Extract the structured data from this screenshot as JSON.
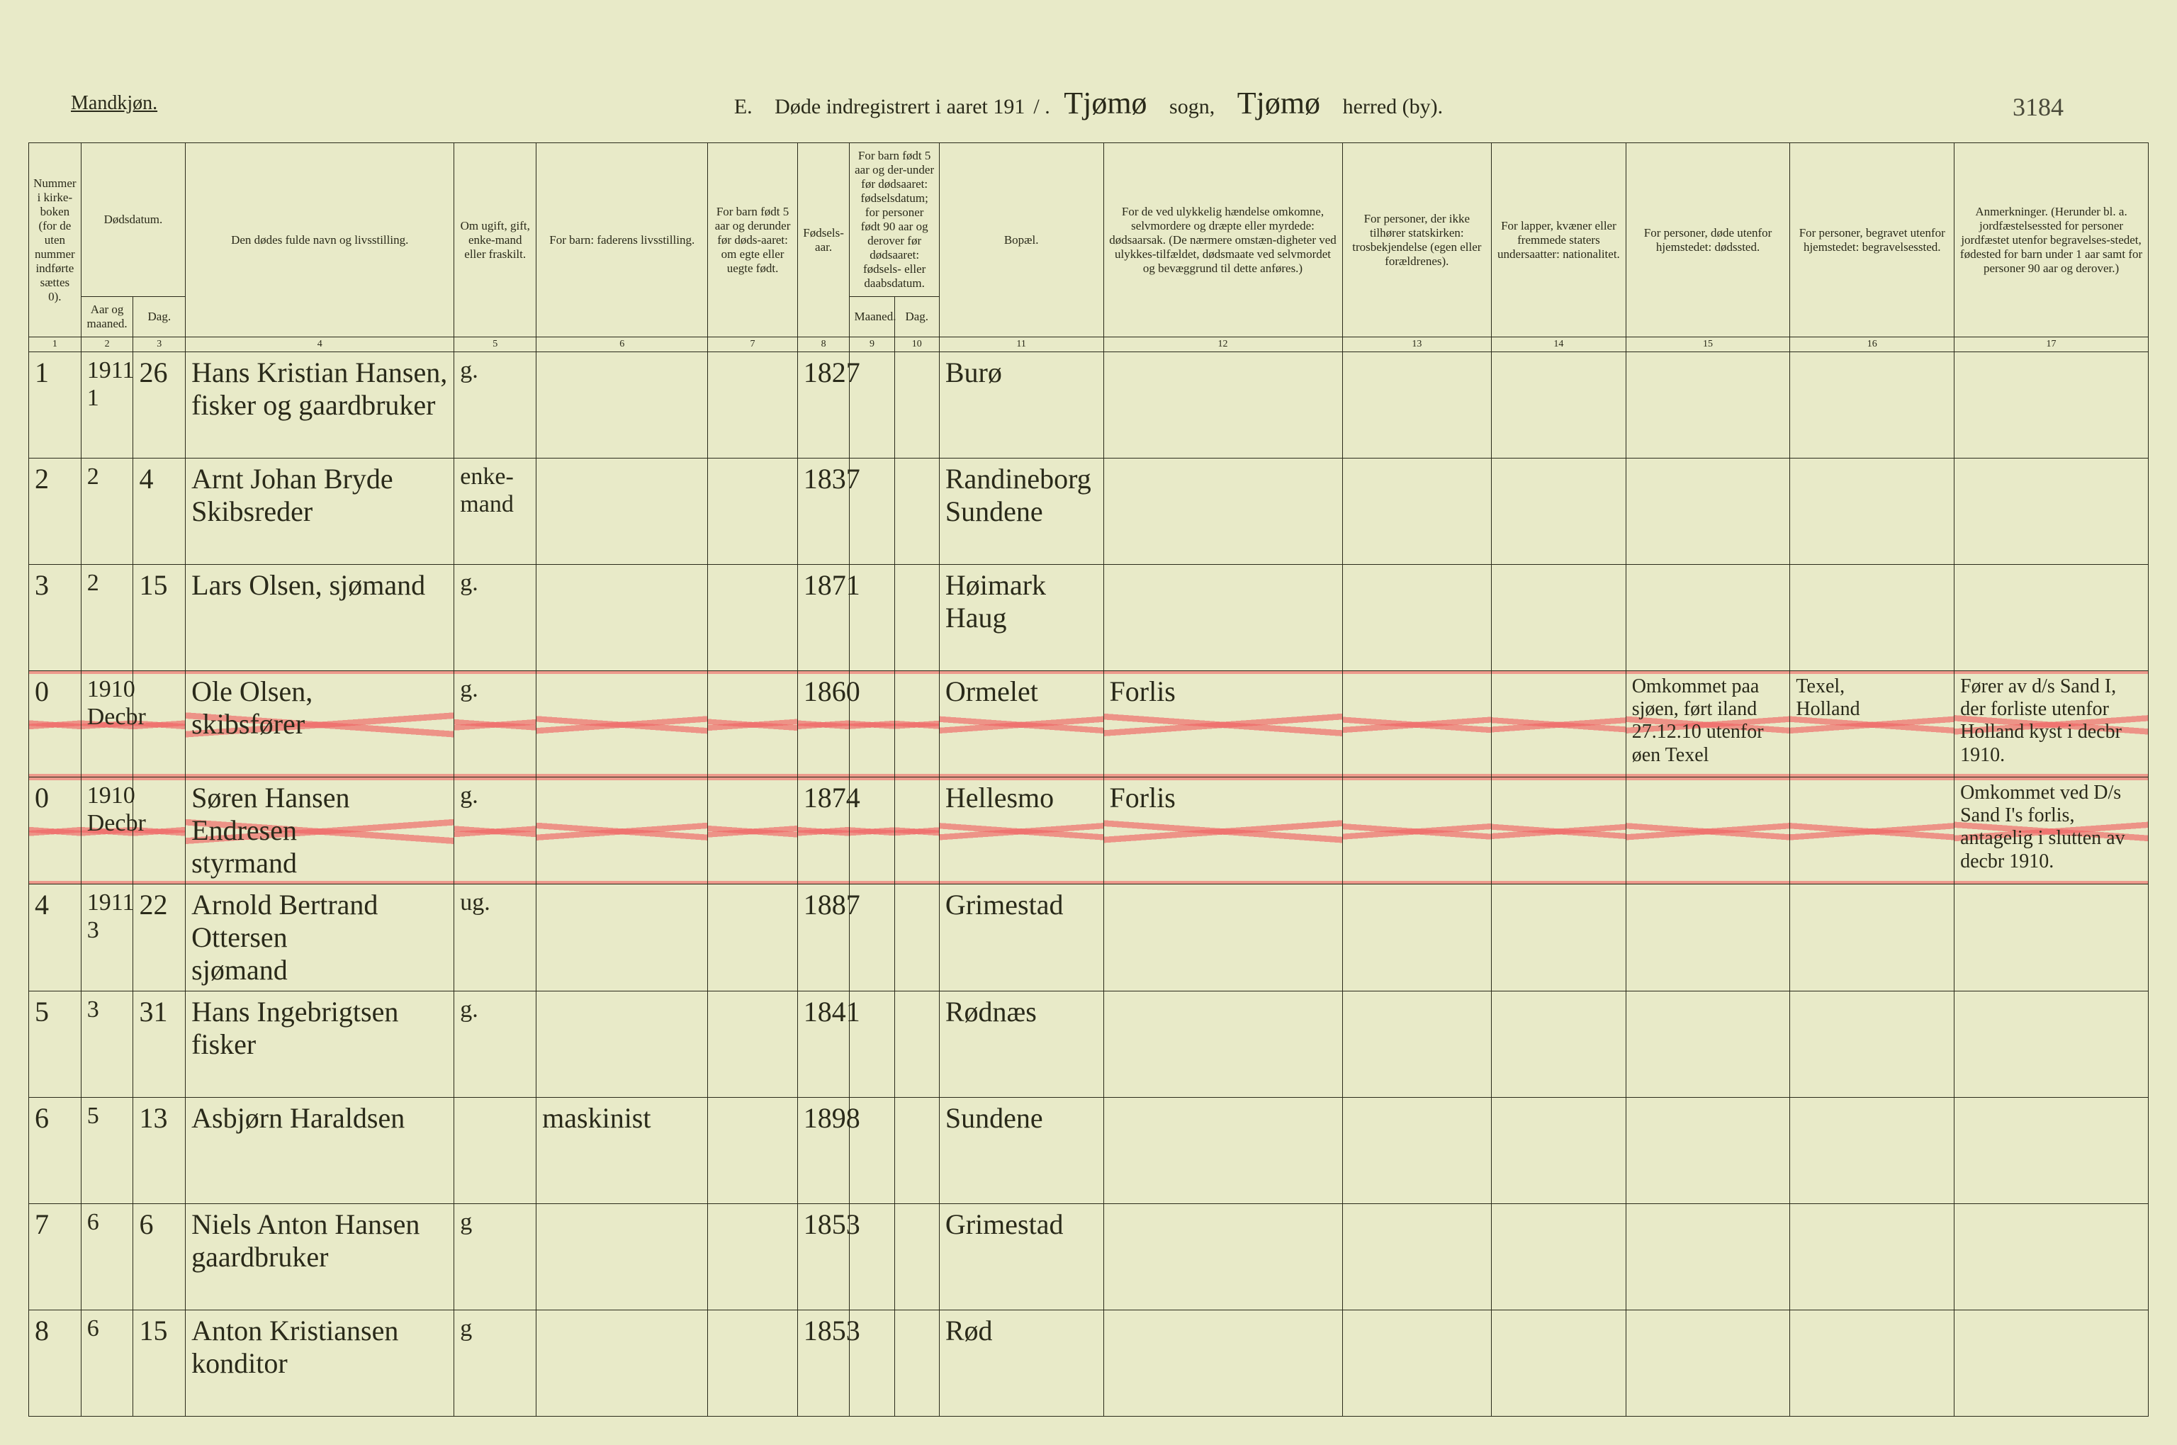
{
  "doc": {
    "background_color": "#e8eac8",
    "ink_color": "#2a2a1a",
    "strike_color": "#f06464"
  },
  "meta": {
    "page_label": "Mandkjøn.",
    "corner_note": "3184"
  },
  "title": {
    "form_letter": "E.",
    "form_text_a": "Døde indregistrert i aaret 191",
    "form_year_suffix": "/ .",
    "sogn_value": "Tjømø",
    "sogn_label": "sogn,",
    "herred_value": "Tjømø",
    "herred_label": "herred (by)."
  },
  "header": {
    "col1": "Nummer i kirke-boken (for de uten nummer indførte sættes 0).",
    "col2a": "Dødsdatum.",
    "col2_aar": "Aar og maaned.",
    "col2_dag": "Dag.",
    "col4": "Den dødes fulde navn og livsstilling.",
    "col5": "Om ugift, gift, enke-mand eller fraskilt.",
    "col6": "For barn: faderens livsstilling.",
    "col7": "For barn født 5 aar og derunder før døds-aaret: om egte eller uegte født.",
    "col8": "Fødsels-aar.",
    "col9_10": "For barn født 5 aar og der-under før dødsaaret: fødselsdatum; for personer født 90 aar og derover før dødsaaret: fødsels- eller daabsdatum.",
    "col9": "Maaned.",
    "col10": "Dag.",
    "col11": "Bopæl.",
    "col12": "For de ved ulykkelig hændelse omkomne, selvmordere og dræpte eller myrdede: dødsaarsak. (De nærmere omstæn-digheter ved ulykkes-tilfældet, dødsmaate ved selvmordet og bevæggrund til dette anføres.)",
    "col13": "For personer, der ikke tilhører statskirken: trosbekjendelse (egen eller forældrenes).",
    "col14": "For lapper, kvæner eller fremmede staters undersaatter: nationalitet.",
    "col15": "For personer, døde utenfor hjemstedet: dødssted.",
    "col16": "For personer, begravet utenfor hjemstedet: begravelsessted.",
    "col17": "Anmerkninger. (Herunder bl. a. jordfæstelsessted for personer jordfæstet utenfor begravelses-stedet, fødested for barn under 1 aar samt for personer 90 aar og derover.)"
  },
  "colnums": [
    "1",
    "2",
    "3",
    "4",
    "5",
    "6",
    "7",
    "8",
    "9",
    "10",
    "11",
    "12",
    "13",
    "14",
    "15",
    "16",
    "17"
  ],
  "rows": [
    {
      "num": "1",
      "aar": "1911\n1",
      "dag": "26",
      "name": "Hans Kristian Hansen,\nfisker og gaardbruker",
      "status": "g.",
      "faryear": "1827",
      "bopael": "Burø",
      "struck": false
    },
    {
      "num": "2",
      "aar": "2",
      "dag": "4",
      "name": "Arnt Johan Bryde\nSkibsreder",
      "status": "enke-\nmand",
      "faryear": "1837",
      "bopael": "Randineborg\nSundene",
      "struck": false
    },
    {
      "num": "3",
      "aar": "2",
      "dag": "15",
      "name": "Lars Olsen, sjømand",
      "status": "g.",
      "faryear": "1871",
      "bopael": "Høimark\nHaug",
      "struck": false
    },
    {
      "num": "0",
      "aar": "1910\nDecbr",
      "dag": "",
      "name": "Ole Olsen,\nskibsfører",
      "status": "g.",
      "faryear": "1860",
      "bopael": "Ormelet",
      "c12": "Forlis",
      "c15": "Omkommet paa sjøen, ført iland 27.12.10 utenfor øen Texel",
      "c16": "Texel,\nHolland",
      "c17": "Fører av d/s Sand I, der forliste utenfor Holland kyst i decbr 1910.",
      "struck": true
    },
    {
      "num": "0",
      "aar": "1910\nDecbr",
      "dag": "",
      "name": "Søren Hansen Endresen\nstyrmand",
      "status": "g.",
      "faryear": "1874",
      "bopael": "Hellesmo",
      "c12": "Forlis",
      "c17": "Omkommet ved D/s Sand I's forlis, antagelig i slutten av decbr 1910.",
      "struck": true
    },
    {
      "num": "4",
      "aar": "1911\n3",
      "dag": "22",
      "name": "Arnold Bertrand Ottersen\nsjømand",
      "status": "ug.",
      "faryear": "1887",
      "bopael": "Grimestad",
      "struck": false
    },
    {
      "num": "5",
      "aar": "3",
      "dag": "31",
      "name": "Hans Ingebrigtsen\nfisker",
      "status": "g.",
      "faryear": "1841",
      "bopael": "Rødnæs",
      "struck": false
    },
    {
      "num": "6",
      "aar": "5",
      "dag": "13",
      "name": "Asbjørn Haraldsen",
      "status": "",
      "col6": "maskinist",
      "faryear": "1898",
      "bopael": "Sundene",
      "struck": false
    },
    {
      "num": "7",
      "aar": "6",
      "dag": "6",
      "name": "Niels Anton Hansen\ngaardbruker",
      "status": "g",
      "faryear": "1853",
      "bopael": "Grimestad",
      "struck": false
    },
    {
      "num": "8",
      "aar": "6",
      "dag": "15",
      "name": "Anton Kristiansen\nkonditor",
      "status": "g",
      "faryear": "1853",
      "bopael": "Rød",
      "struck": false
    }
  ]
}
